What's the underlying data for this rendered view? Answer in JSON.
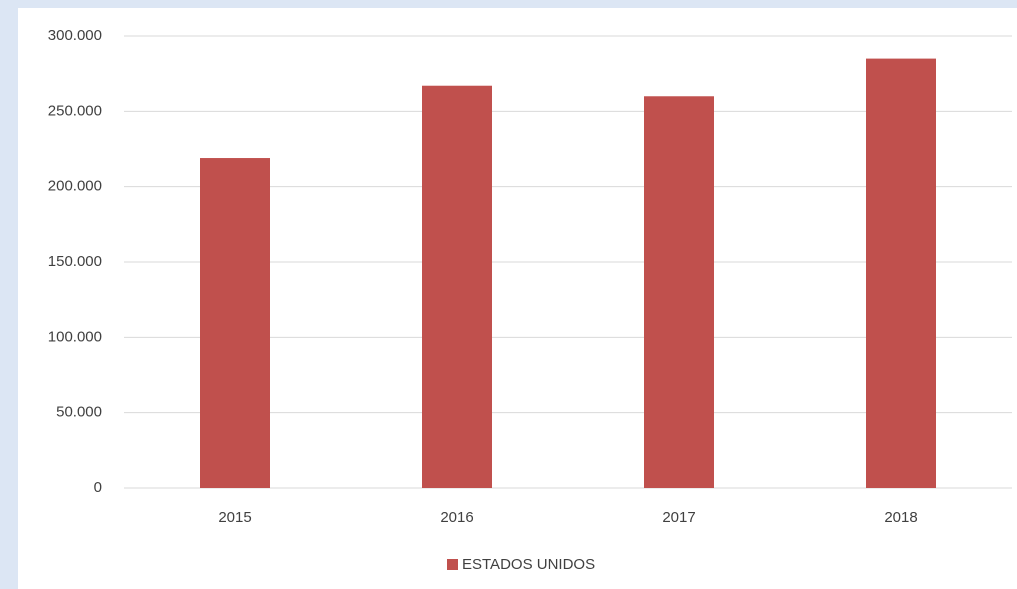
{
  "chart_data": {
    "type": "bar",
    "categories": [
      "2015",
      "2016",
      "2017",
      "2018"
    ],
    "series": [
      {
        "name": "ESTADOS UNIDOS",
        "color": "#c0504d",
        "values": [
          219000,
          267000,
          260000,
          285000
        ]
      }
    ],
    "ylim": [
      0,
      300000
    ],
    "yticks": [
      0,
      {
        "value": 50000,
        "label": "50.000"
      },
      {
        "value": 100000,
        "label": "100.000"
      },
      {
        "value": 150000,
        "label": "150.000"
      },
      {
        "value": 200000,
        "label": "200.000"
      },
      {
        "value": 250000,
        "label": "250.000"
      },
      {
        "value": 300000,
        "label": "300.000"
      }
    ],
    "grid": true,
    "legend": "bottom"
  }
}
